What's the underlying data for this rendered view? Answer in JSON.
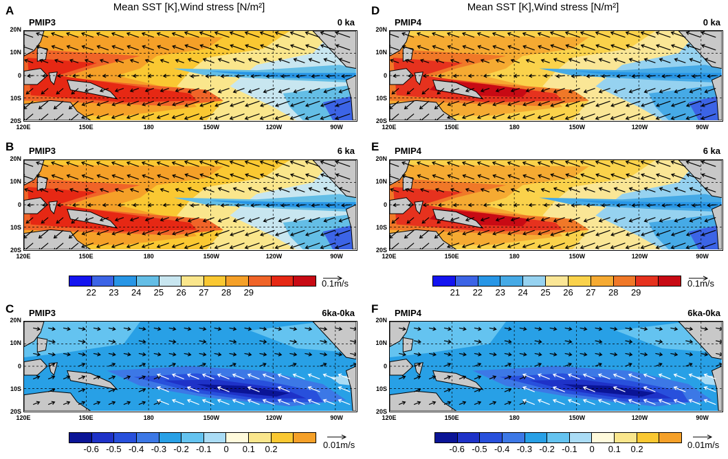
{
  "top_title": "Mean SST [K],Wind stress [N/m²]",
  "panels": [
    {
      "letter": "A",
      "model": "PMIP3",
      "period": "0 ka"
    },
    {
      "letter": "D",
      "model": "PMIP4",
      "period": "0 ka"
    },
    {
      "letter": "B",
      "model": "PMIP3",
      "period": "6 ka"
    },
    {
      "letter": "E",
      "model": "PMIP4",
      "period": "6 ka"
    },
    {
      "letter": "C",
      "model": "PMIP3",
      "period": "6ka-0ka"
    },
    {
      "letter": "F",
      "model": "PMIP4",
      "period": "6ka-0ka"
    }
  ],
  "lat_ticks": [
    "20N",
    "10N",
    "0",
    "10S",
    "20S"
  ],
  "lon_ticks": [
    "120E",
    "150E",
    "180",
    "150W",
    "120W",
    "90W"
  ],
  "colorbars": {
    "left_mean": {
      "labels": [
        "22",
        "23",
        "24",
        "25",
        "26",
        "27",
        "28",
        "29"
      ],
      "colors": [
        "#1414f0",
        "#3c64e6",
        "#2896e6",
        "#64bee6",
        "#c8e6f0",
        "#fae68c",
        "#fac832",
        "#f5a028",
        "#f06428",
        "#e62814",
        "#c80a14"
      ],
      "ref": "0.1m/s"
    },
    "right_mean": {
      "labels": [
        "21",
        "22",
        "23",
        "24",
        "25",
        "26",
        "27",
        "28",
        "29"
      ],
      "colors": [
        "#1414f0",
        "#3c64e6",
        "#2896e6",
        "#46aae6",
        "#96d2f0",
        "#fae696",
        "#fad24b",
        "#f5aa32",
        "#f07828",
        "#e6321e",
        "#c80a14"
      ],
      "ref": "0.1m/s"
    },
    "left_diff": {
      "labels": [
        "-0.6",
        "-0.5",
        "-0.4",
        "-0.3",
        "-0.2",
        "-0.1",
        "0",
        "0.1",
        "0.2"
      ],
      "colors": [
        "#0a1496",
        "#1e32c8",
        "#2850dc",
        "#3c78e6",
        "#28a0e6",
        "#64c3f0",
        "#aadcf5",
        "#fffadc",
        "#fae68c",
        "#fac832",
        "#f5a028"
      ],
      "ref": "0.01m/s"
    },
    "right_diff": {
      "labels": [
        "-0.6",
        "-0.5",
        "-0.4",
        "-0.3",
        "-0.2",
        "-0.1",
        "0",
        "0.1",
        "0.2"
      ],
      "colors": [
        "#0a1496",
        "#1e32c8",
        "#2850dc",
        "#3c78e6",
        "#28a0e6",
        "#64c3f0",
        "#aadcf5",
        "#fffadc",
        "#fae68c",
        "#fac832",
        "#f5a028"
      ],
      "ref": "0.01m/s"
    }
  },
  "colors": {
    "land": "#c8c8c8",
    "diff_base": "#46aae6"
  }
}
